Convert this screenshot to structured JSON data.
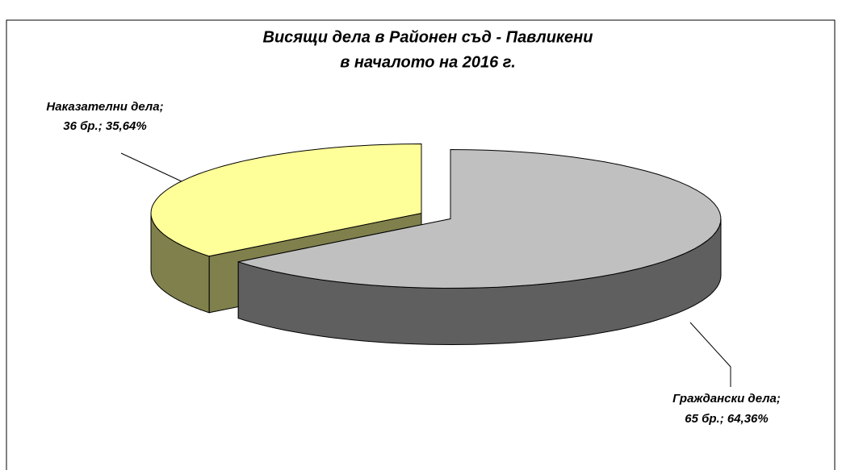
{
  "chart_data": {
    "type": "pie3d",
    "title": [
      "Висящи дела в Районен съд - Павликени",
      "в началото на 2016 г."
    ],
    "categories": [
      "Наказателни дела;",
      "Граждански дела;"
    ],
    "values": [
      36,
      65
    ],
    "value_labels": [
      "36 бр.; 35,64%",
      "65 бр.; 64,36%"
    ],
    "colors": [
      "#ffff99",
      "#c0c0c0"
    ],
    "side_colors": [
      "#80804d",
      "#5f5f5f"
    ]
  }
}
